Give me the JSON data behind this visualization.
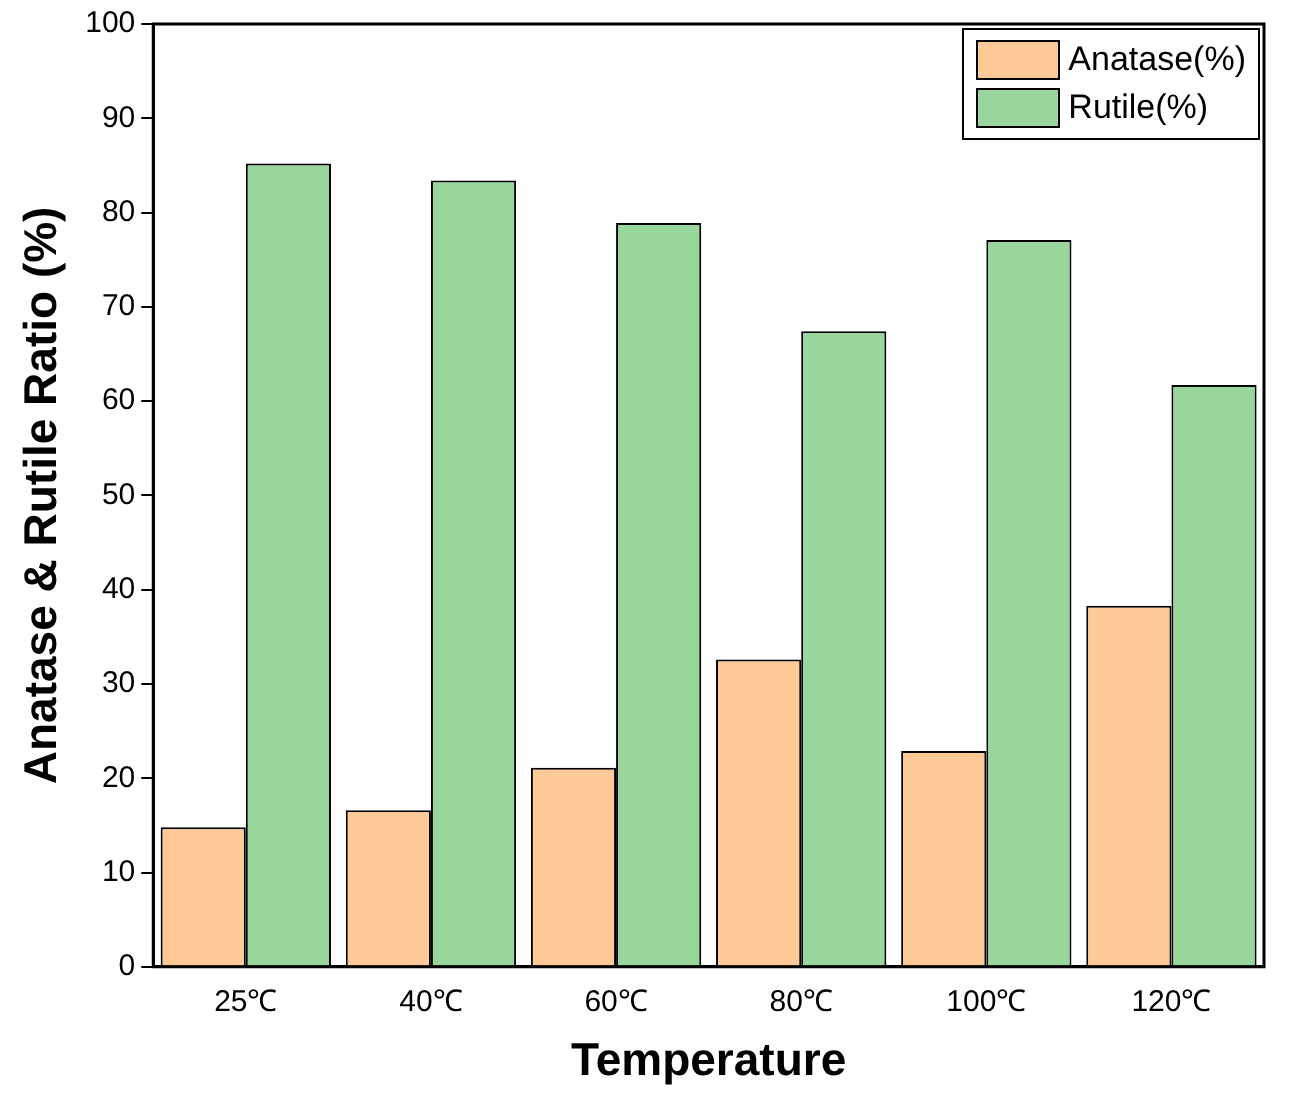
{
  "chart_data": {
    "type": "bar",
    "xlabel": "Temperature",
    "ylabel": "Anatase & Rutile Ratio (%)",
    "categories": [
      "25℃",
      "40℃",
      "60℃",
      "80℃",
      "100℃",
      "120℃"
    ],
    "series": [
      {
        "name": "Anatase(%)",
        "color": "#fdc997",
        "values": [
          14.8,
          16.6,
          21.1,
          32.6,
          22.9,
          38.3
        ]
      },
      {
        "name": "Rutile(%)",
        "color": "#99d69b",
        "values": [
          85.2,
          83.4,
          78.9,
          67.4,
          77.1,
          61.7
        ]
      }
    ],
    "ylim": [
      0,
      100
    ],
    "yticks": [
      0,
      10,
      20,
      30,
      40,
      50,
      60,
      70,
      80,
      90,
      100
    ],
    "grid": false,
    "legend": "top right"
  }
}
